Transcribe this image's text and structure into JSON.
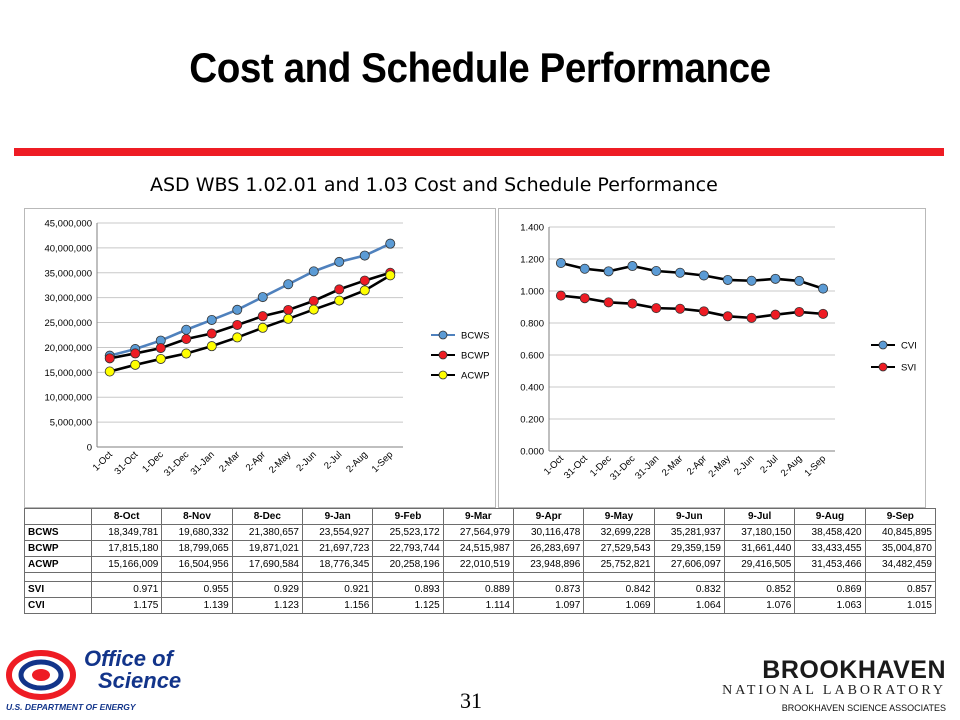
{
  "slide": {
    "title": "Cost and Schedule Performance",
    "subtitle": "ASD  WBS 1.02.01 and 1.03  Cost and Schedule Performance",
    "page_number": "31",
    "accent_color": "#ee1c24"
  },
  "footer": {
    "left_logo": {
      "line1": "Office of",
      "line2": "Science",
      "line3": "U.S. DEPARTMENT OF ENERGY",
      "icon": "doe-swirl-icon",
      "color": "#12348a"
    },
    "right_logo": {
      "name": "BROOKHAVEN",
      "sub": "NATIONAL LABORATORY",
      "assoc": "BROOKHAVEN SCIENCE ASSOCIATES"
    }
  },
  "chart_data": [
    {
      "type": "line",
      "x": [
        "1-Oct",
        "31-Oct",
        "1-Dec",
        "31-Dec",
        "31-Jan",
        "2-Mar",
        "2-Apr",
        "2-May",
        "2-Jun",
        "2-Jul",
        "2-Aug",
        "1-Sep"
      ],
      "series": [
        {
          "name": "BCWS",
          "color": "#4f81bd",
          "marker": "#5b9bd5",
          "values": [
            18349781,
            19680332,
            21380657,
            23554927,
            25523172,
            27564979,
            30116478,
            32699228,
            35281937,
            37180150,
            38458420,
            40845895
          ]
        },
        {
          "name": "BCWP",
          "color": "#000000",
          "marker": "#ee1c24",
          "values": [
            17815180,
            18799065,
            19871021,
            21697723,
            22793744,
            24515987,
            26283697,
            27529543,
            29359159,
            31661440,
            33433455,
            35004870
          ]
        },
        {
          "name": "ACWP",
          "color": "#000000",
          "marker": "#ffff00",
          "values": [
            15166009,
            16504956,
            17690584,
            18776345,
            20258196,
            22010519,
            23948896,
            25752821,
            27606097,
            29416505,
            31453466,
            34482459
          ]
        }
      ],
      "yticks": [
        "0",
        "5,000,000",
        "10,000,000",
        "15,000,000",
        "20,000,000",
        "25,000,000",
        "30,000,000",
        "35,000,000",
        "40,000,000",
        "45,000,000"
      ],
      "ylim": [
        0,
        45000000
      ],
      "grid": true,
      "legend": "right"
    },
    {
      "type": "line",
      "x": [
        "1-Oct",
        "31-Oct",
        "1-Dec",
        "31-Dec",
        "31-Jan",
        "2-Mar",
        "2-Apr",
        "2-May",
        "2-Jun",
        "2-Jul",
        "2-Aug",
        "1-Sep"
      ],
      "series": [
        {
          "name": "CVI",
          "color": "#000000",
          "marker": "#5b9bd5",
          "values": [
            1.175,
            1.139,
            1.123,
            1.156,
            1.125,
            1.114,
            1.097,
            1.069,
            1.064,
            1.076,
            1.063,
            1.015
          ]
        },
        {
          "name": "SVI",
          "color": "#000000",
          "marker": "#ee1c24",
          "values": [
            0.971,
            0.955,
            0.929,
            0.921,
            0.893,
            0.889,
            0.873,
            0.842,
            0.832,
            0.852,
            0.869,
            0.857
          ]
        }
      ],
      "yticks": [
        "0.000",
        "0.200",
        "0.400",
        "0.600",
        "0.800",
        "1.000",
        "1.200",
        "1.400"
      ],
      "ylim": [
        0,
        1.4
      ],
      "grid": true,
      "legend": "right"
    },
    {
      "type": "table",
      "columns": [
        "8-Oct",
        "8-Nov",
        "8-Dec",
        "9-Jan",
        "9-Feb",
        "9-Mar",
        "9-Apr",
        "9-May",
        "9-Jun",
        "9-Jul",
        "9-Aug",
        "9-Sep"
      ],
      "rows": [
        {
          "label": "BCWS",
          "values": [
            "18,349,781",
            "19,680,332",
            "21,380,657",
            "23,554,927",
            "25,523,172",
            "27,564,979",
            "30,116,478",
            "32,699,228",
            "35,281,937",
            "37,180,150",
            "38,458,420",
            "40,845,895"
          ]
        },
        {
          "label": "BCWP",
          "values": [
            "17,815,180",
            "18,799,065",
            "19,871,021",
            "21,697,723",
            "22,793,744",
            "24,515,987",
            "26,283,697",
            "27,529,543",
            "29,359,159",
            "31,661,440",
            "33,433,455",
            "35,004,870"
          ]
        },
        {
          "label": "ACWP",
          "values": [
            "15,166,009",
            "16,504,956",
            "17,690,584",
            "18,776,345",
            "20,258,196",
            "22,010,519",
            "23,948,896",
            "25,752,821",
            "27,606,097",
            "29,416,505",
            "31,453,466",
            "34,482,459"
          ]
        },
        {
          "label": "SVI",
          "values": [
            "0.971",
            "0.955",
            "0.929",
            "0.921",
            "0.893",
            "0.889",
            "0.873",
            "0.842",
            "0.832",
            "0.852",
            "0.869",
            "0.857"
          ]
        },
        {
          "label": "CVI",
          "values": [
            "1.175",
            "1.139",
            "1.123",
            "1.156",
            "1.125",
            "1.114",
            "1.097",
            "1.069",
            "1.064",
            "1.076",
            "1.063",
            "1.015"
          ]
        }
      ]
    }
  ]
}
